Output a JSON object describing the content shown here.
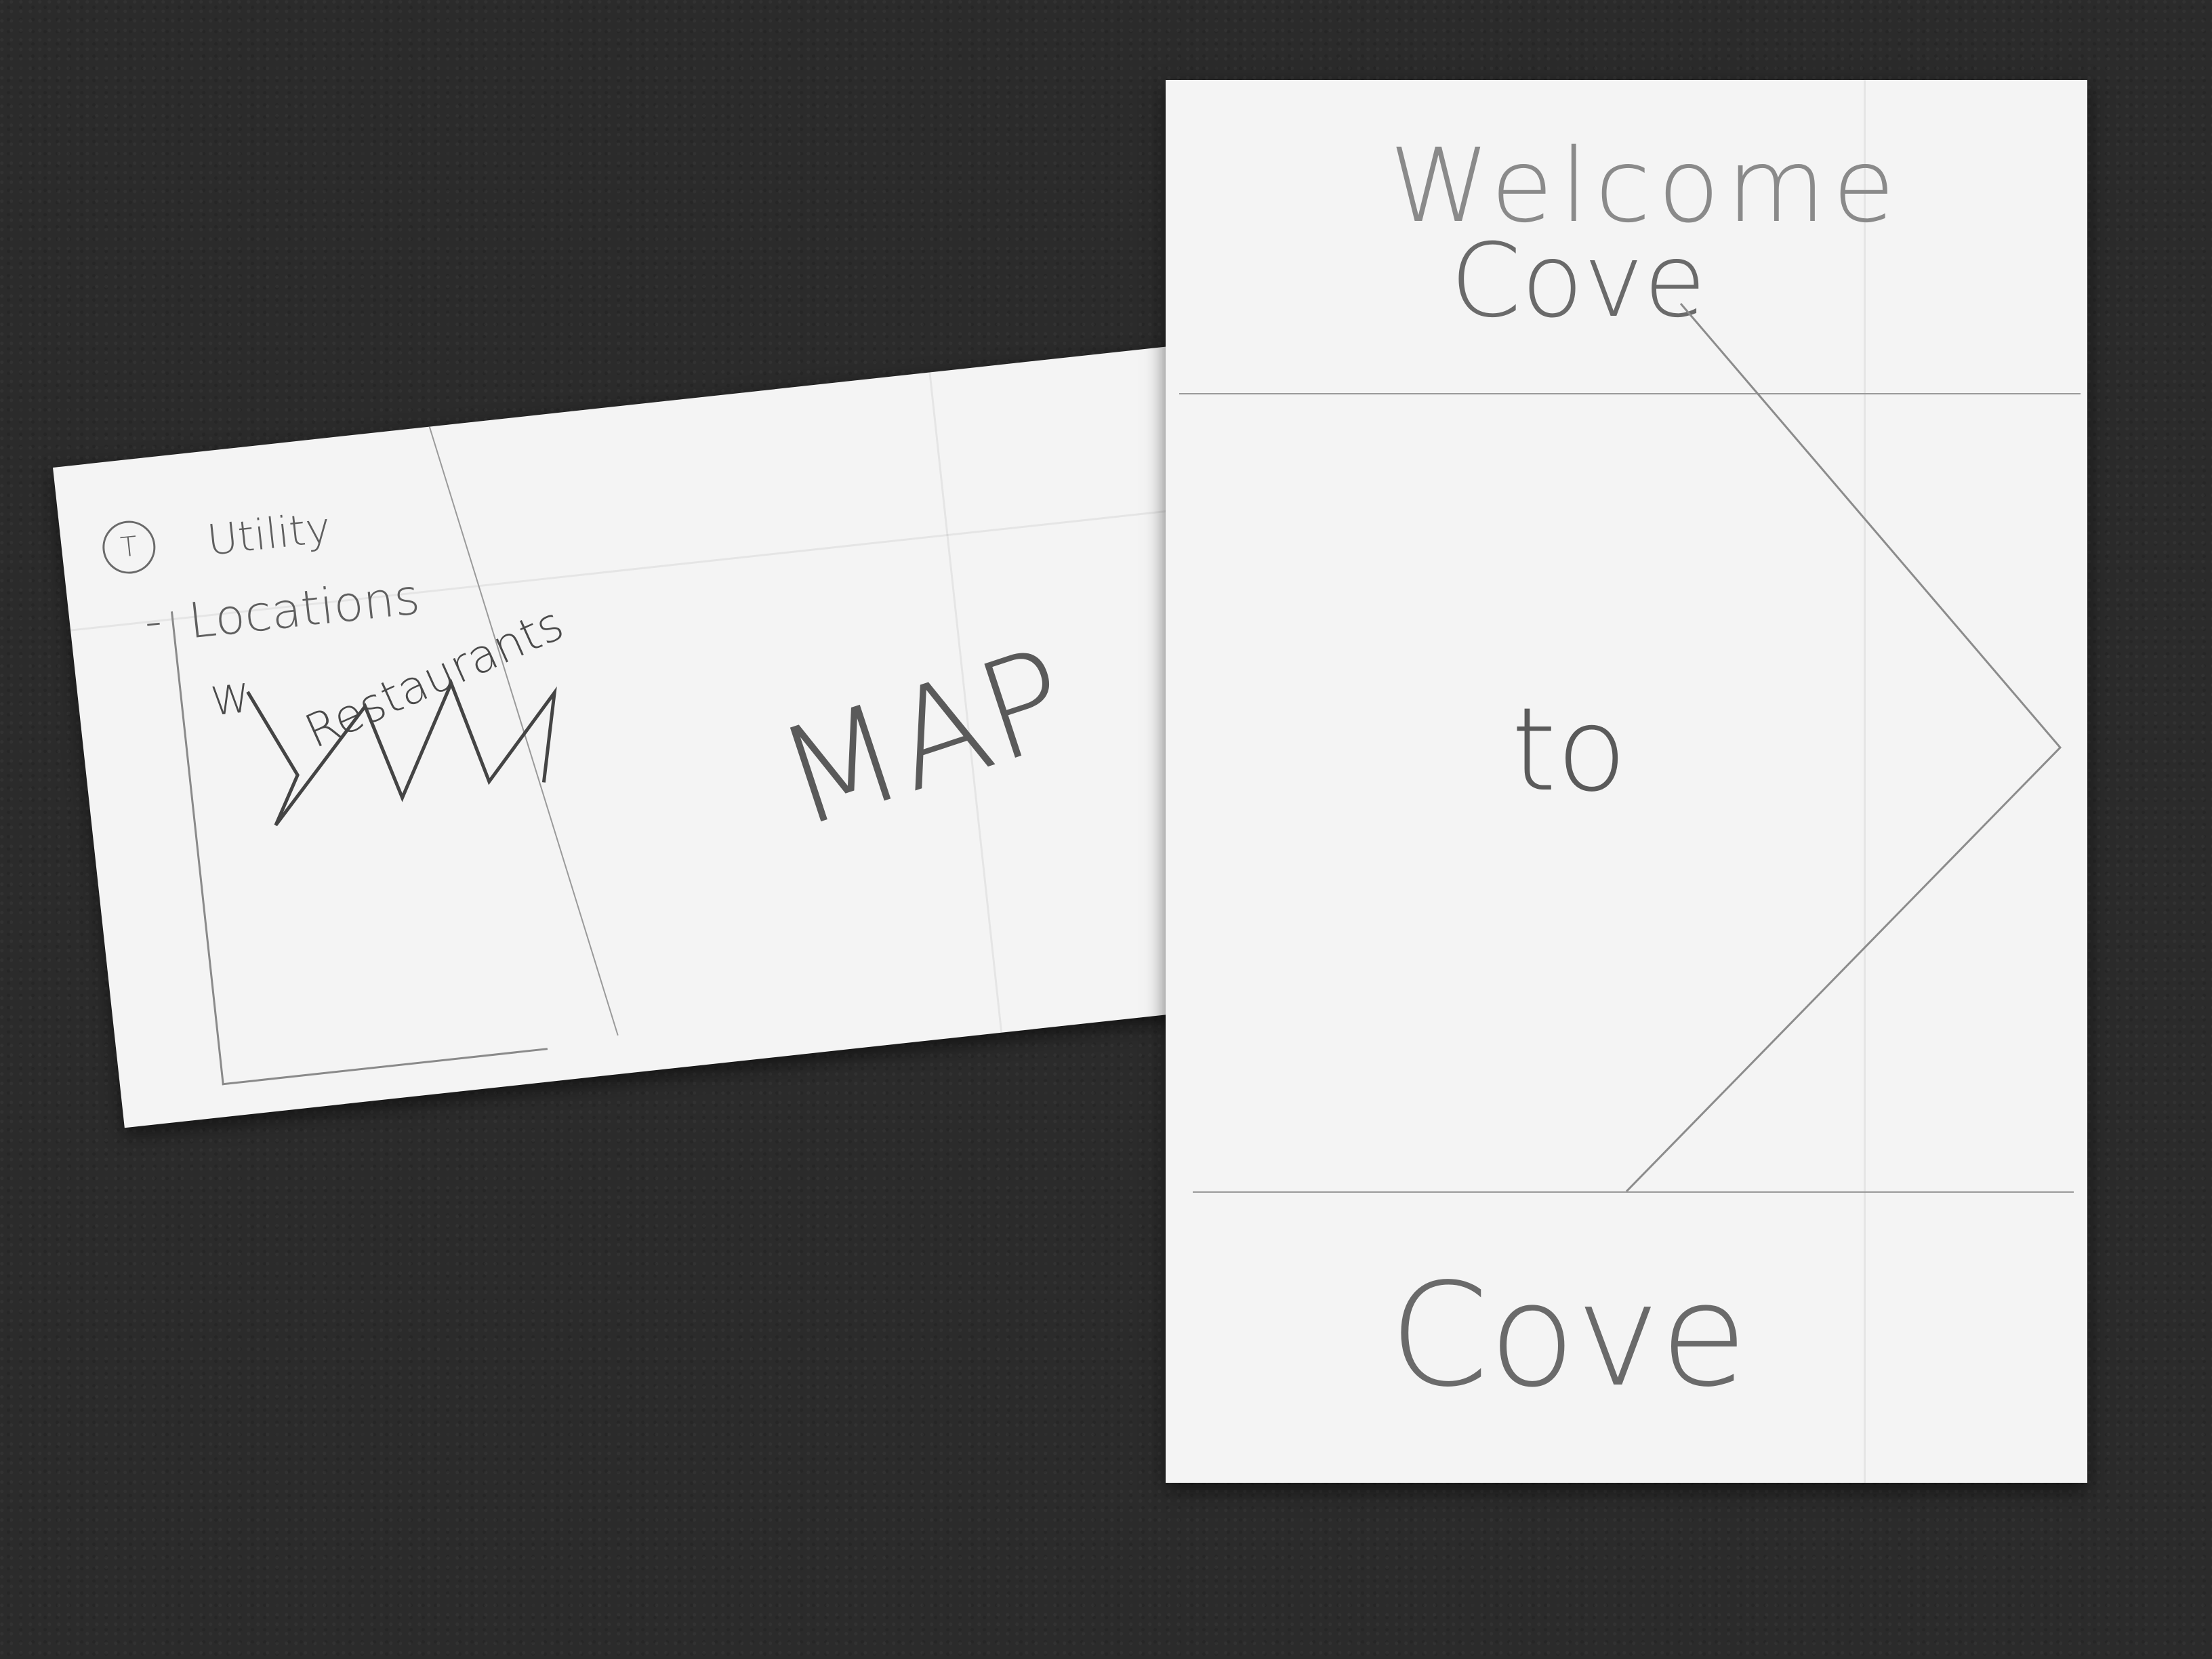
{
  "left_sketch": {
    "menu_marker": "T",
    "sidebar": {
      "utility_label": "Utility",
      "locations_label": "Locations",
      "locations_dash": "-",
      "restaurants_marker": "W",
      "restaurants_label": "Restaurants"
    },
    "map_label": "MAP"
  },
  "right_sketch": {
    "header": {
      "line1": "Welcome",
      "line2": "Cove"
    },
    "next_arrow_icon": "chevron-right",
    "center_text": "to",
    "footer_text": "Cove"
  }
}
